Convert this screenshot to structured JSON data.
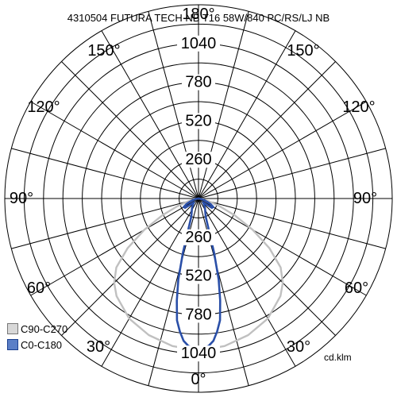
{
  "chart_data": {
    "type": "polar",
    "title": "4310504 FUTURA TECH NB T16 58W/840 PC/RS/LJ NB",
    "unit": "cd.klm",
    "rmax": 1300,
    "radial_ticks": [
      260,
      520,
      780,
      1040
    ],
    "angle_labels": {
      "right": [
        "90°",
        "120°",
        "150°",
        "180°"
      ],
      "left": [
        "150°",
        "120°",
        "90°",
        "60°",
        "30°"
      ],
      "bottom_right": [
        "60°",
        "30°"
      ],
      "bottom": "0°"
    },
    "series": [
      {
        "name": "C90-C270",
        "color": "#c0c0c0",
        "angles": [
          0,
          10,
          20,
          30,
          40,
          45,
          50,
          55,
          60,
          65,
          70,
          75,
          80,
          85,
          90
        ],
        "values": [
          1020,
          1005,
          975,
          930,
          855,
          800,
          720,
          580,
          420,
          270,
          150,
          70,
          30,
          10,
          0
        ]
      },
      {
        "name": "C0-C180",
        "color": "#2a4fa8",
        "angles": [
          0,
          2,
          4,
          6,
          8,
          10,
          12,
          14,
          16,
          18,
          20,
          22,
          25,
          30,
          35,
          40,
          45,
          50,
          55,
          60,
          65,
          70,
          75,
          80,
          85,
          90
        ],
        "values": [
          1010,
          1005,
          990,
          960,
          900,
          830,
          700,
          560,
          380,
          230,
          160,
          130,
          110,
          90,
          75,
          60,
          50,
          40,
          110,
          115,
          90,
          60,
          35,
          15,
          5,
          0
        ]
      }
    ]
  }
}
